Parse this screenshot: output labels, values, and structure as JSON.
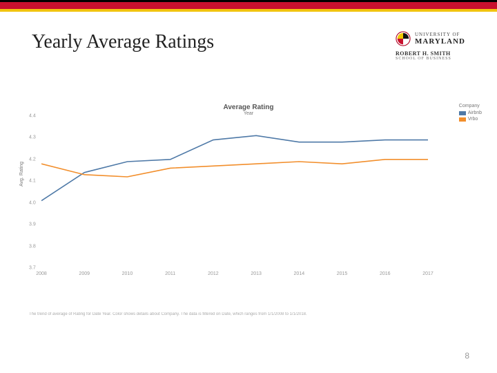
{
  "header": {
    "title": "Yearly Average Ratings",
    "university_line1": "UNIVERSITY OF",
    "university_line2": "MARYLAND",
    "smith_line1": "ROBERT H. SMITH",
    "smith_line2": "SCHOOL OF BUSINESS"
  },
  "page_number": "8",
  "chart": {
    "type": "line",
    "title": "Average Rating",
    "subtitle": "Year",
    "ylabel": "Avg. Rating",
    "footnote": "The trend of average of Rating for Date Year. Color shows details about Company. The data is filtered on Date, which ranges from 1/1/2008 to 1/1/2018.",
    "x_categories": [
      "2008",
      "2009",
      "2010",
      "2011",
      "2012",
      "2013",
      "2014",
      "2015",
      "2016",
      "2017"
    ],
    "ylim": [
      3.7,
      4.4
    ],
    "ytick_step": 0.1,
    "background_color": "#ffffff",
    "tick_color": "#999999",
    "tick_fontsize": 7,
    "title_fontsize": 10,
    "label_fontsize": 7,
    "line_width": 1.6,
    "series": [
      {
        "name": "Airbnb",
        "color": "#4e79a7",
        "values": [
          4.01,
          4.14,
          4.19,
          4.2,
          4.29,
          4.31,
          4.28,
          4.28,
          4.29,
          4.29
        ]
      },
      {
        "name": "Vrbo",
        "color": "#f28e2b",
        "values": [
          4.18,
          4.13,
          4.12,
          4.16,
          4.17,
          4.18,
          4.19,
          4.18,
          4.2,
          4.2
        ]
      }
    ],
    "legend": {
      "title": "Company",
      "position": "top-right"
    }
  },
  "seal_colors": {
    "outer": "#b00020",
    "quad_a": "#111111",
    "quad_b": "#f1c800",
    "flag_r": "#c8102e",
    "flag_w": "#ffffff"
  }
}
